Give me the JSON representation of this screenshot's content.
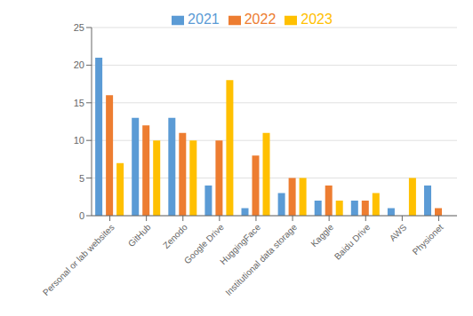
{
  "chart_data": {
    "type": "bar",
    "categories": [
      "Personal or lab websites",
      "GitHub",
      "Zenodo",
      "Google Drive",
      "HuggingFace",
      "Institutional data storage",
      "Kaggle",
      "Baidu Drive",
      "AWS",
      "Physionet"
    ],
    "series": [
      {
        "name": "2021",
        "color": "#5B9BD5",
        "values": [
          21,
          13,
          13,
          4,
          1,
          3,
          2,
          2,
          1,
          4
        ]
      },
      {
        "name": "2022",
        "color": "#ED7D31",
        "values": [
          16,
          12,
          11,
          10,
          8,
          5,
          4,
          2,
          0,
          1
        ]
      },
      {
        "name": "2023",
        "color": "#FFC000",
        "values": [
          7,
          10,
          10,
          18,
          11,
          5,
          2,
          3,
          5,
          0
        ]
      }
    ],
    "ylim": [
      0,
      25
    ],
    "yticks": [
      0,
      5,
      10,
      15,
      20,
      25
    ],
    "grid": true,
    "legend": "top"
  }
}
